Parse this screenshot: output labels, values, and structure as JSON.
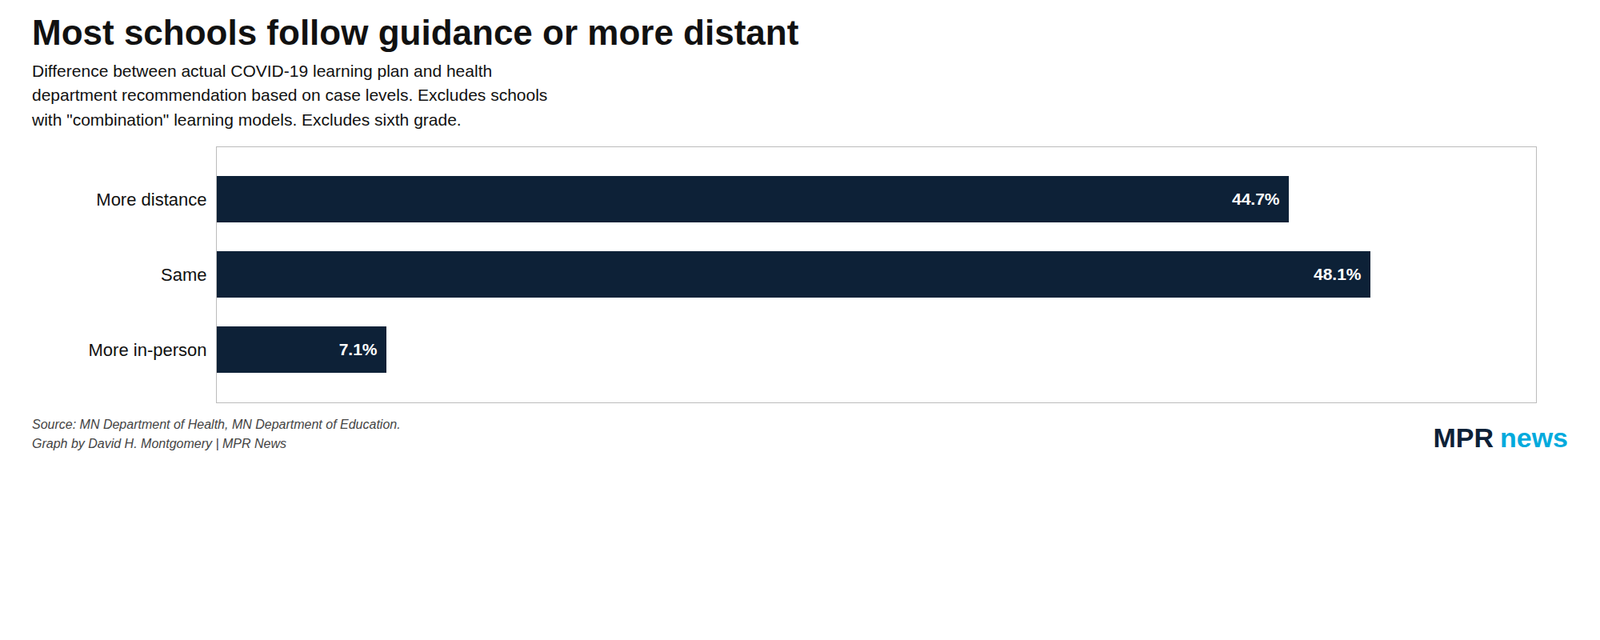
{
  "chart_data": {
    "type": "bar",
    "orientation": "horizontal",
    "title": "Most schools follow guidance or more distant",
    "subtitle": "Difference between actual COVID-19 learning plan and health\ndepartment recommendation based on case levels. Excludes schools\nwith \"combination\" learning models. Excludes sixth grade.",
    "source": "Source: MN Department of Health, MN Department of Education.\nGraph by David H. Montgomery | MPR News",
    "annotations": [
      {
        "text": "MPR",
        "color": "#0d2137"
      },
      {
        "text": "news",
        "color": "#00aadd"
      }
    ],
    "categories": [
      "More distance",
      "Same",
      "More in-person"
    ],
    "values": [
      44.7,
      48.1,
      7.1
    ],
    "value_labels": [
      "44.7%",
      "48.1%",
      "7.1%"
    ],
    "data_labels": true,
    "color": "#0d2137",
    "xlim": [
      0,
      55
    ],
    "tick_labels": "y",
    "grid": false
  }
}
